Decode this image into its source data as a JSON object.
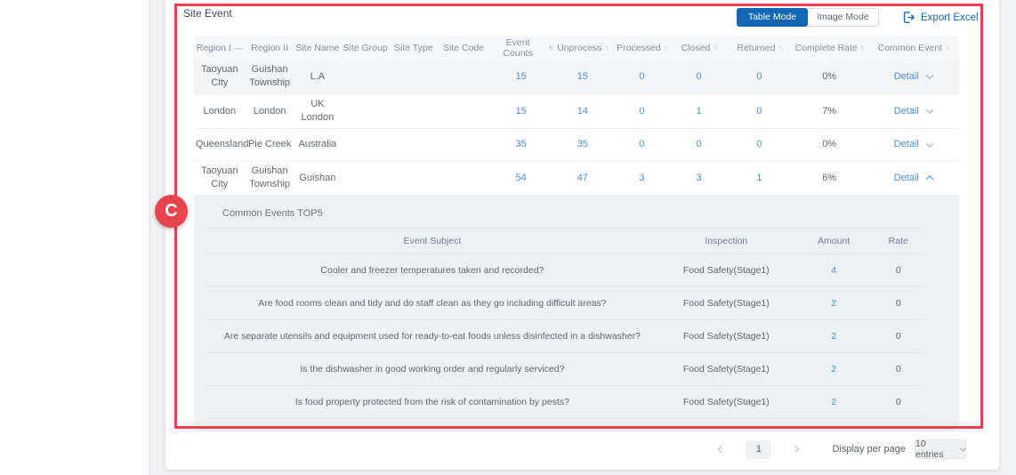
{
  "panel": {
    "title": "Site Event",
    "table_mode_label": "Table Mode",
    "image_mode_label": "Image Mode",
    "export_label": "Export Excel"
  },
  "annotation": {
    "label": "C",
    "color": "#e8414d"
  },
  "colors": {
    "accent_blue": "#1166b6",
    "link_blue": "#4a8ed5"
  },
  "table": {
    "detail_label": "Detail",
    "columns": [
      {
        "label": "Region I",
        "sort": "dash"
      },
      {
        "label": "Region II",
        "sort": "none"
      },
      {
        "label": "Site Name",
        "sort": "none"
      },
      {
        "label": "Site Group",
        "sort": "none"
      },
      {
        "label": "Site Type",
        "sort": "none"
      },
      {
        "label": "Site Code",
        "sort": "none"
      },
      {
        "label": "Event Counts",
        "sort": "asc"
      },
      {
        "label": "Unprocess",
        "sort": "both"
      },
      {
        "label": "Processed",
        "sort": "both"
      },
      {
        "label": "Closed",
        "sort": "both"
      },
      {
        "label": "Returned",
        "sort": "both"
      },
      {
        "label": "Complete Rate",
        "sort": "both"
      },
      {
        "label": "Common Event",
        "sort": "both"
      }
    ],
    "rows": [
      {
        "region1": "Taoyuan City",
        "region2": "Guishan Township",
        "site_name": "L.A",
        "site_group": "",
        "site_type": "",
        "site_code": "",
        "event_counts": "15",
        "unprocess": "15",
        "processed": "0",
        "closed": "0",
        "returned": "0",
        "complete_rate": "0%",
        "expanded": false,
        "highlighted": true
      },
      {
        "region1": "London",
        "region2": "London",
        "site_name": "UK London",
        "site_group": "",
        "site_type": "",
        "site_code": "",
        "event_counts": "15",
        "unprocess": "14",
        "processed": "0",
        "closed": "1",
        "returned": "0",
        "complete_rate": "7%",
        "expanded": false,
        "highlighted": false
      },
      {
        "region1": "Queensland",
        "region2": "Pie Creek",
        "site_name": "Australia",
        "site_group": "",
        "site_type": "",
        "site_code": "",
        "event_counts": "35",
        "unprocess": "35",
        "processed": "0",
        "closed": "0",
        "returned": "0",
        "complete_rate": "0%",
        "expanded": false,
        "highlighted": false
      },
      {
        "region1": "Taoyuan City",
        "region2": "Guishan Township",
        "site_name": "Guishan",
        "site_group": "",
        "site_type": "",
        "site_code": "",
        "event_counts": "54",
        "unprocess": "47",
        "processed": "3",
        "closed": "3",
        "returned": "1",
        "complete_rate": "6%",
        "expanded": true,
        "highlighted": false
      }
    ]
  },
  "detail_panel": {
    "title": "Common Events TOP5",
    "columns": [
      "Event Subject",
      "Inspection",
      "Amount",
      "Rate"
    ],
    "rows": [
      {
        "subject": "Cooler and freezer temperatures taken and recorded?",
        "inspection": "Food Safety(Stage1)",
        "amount": "4",
        "rate": "0"
      },
      {
        "subject": "Are food rooms clean and tidy and do staff clean as they go including difficult areas?",
        "inspection": "Food Safety(Stage1)",
        "amount": "2",
        "rate": "0"
      },
      {
        "subject": "Are separate utensils and equipment used for ready-to-eat foods unless disinfected in a dishwasher?",
        "inspection": "Food Safety(Stage1)",
        "amount": "2",
        "rate": "0"
      },
      {
        "subject": "Is the dishwasher in good working order and regularly serviced?",
        "inspection": "Food Safety(Stage1)",
        "amount": "2",
        "rate": "0"
      },
      {
        "subject": "Is food property protected from the risk of contamination by pests?",
        "inspection": "Food Safety(Stage1)",
        "amount": "2",
        "rate": "0"
      }
    ]
  },
  "pagination": {
    "page": "1",
    "display_label": "Display per page",
    "entries_value": "10 entries"
  }
}
